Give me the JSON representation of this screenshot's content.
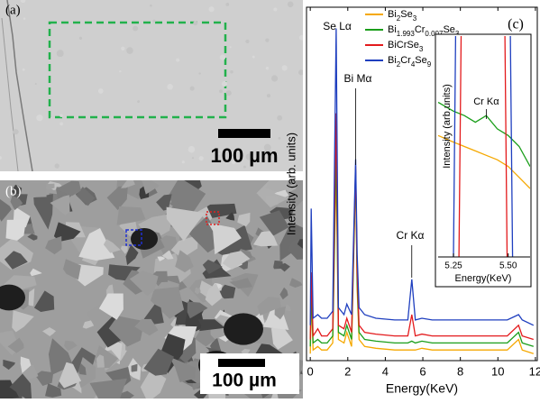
{
  "panels": [
    {
      "label": "(a)",
      "scale_bar": "100 µm"
    },
    {
      "label": "(b)",
      "scale_bar": "100 µm"
    }
  ],
  "chart_data": [
    {
      "type": "line",
      "label": "(c)",
      "x_label": "Energy(KeV)",
      "y_label": "Intensity (arb. units)",
      "x": [
        0,
        0.05,
        0.15,
        0.4,
        0.6,
        0.9,
        1.2,
        1.38,
        1.5,
        1.8,
        1.95,
        2.2,
        2.42,
        2.5,
        2.6,
        2.9,
        3.5,
        4.5,
        5.2,
        5.41,
        5.6,
        5.95,
        6.5,
        7.5,
        8.5,
        9.5,
        10.5,
        11.1,
        11.3,
        11.9
      ],
      "series": [
        {
          "name": "Bi2Se3",
          "color": "#f5a800",
          "values": [
            2,
            18,
            3,
            4,
            3,
            3,
            5,
            55,
            6,
            5,
            8,
            4,
            52,
            20,
            6,
            4,
            3.5,
            3,
            3,
            3,
            3,
            3.5,
            3,
            3,
            3,
            3,
            3,
            6,
            3,
            2
          ]
        },
        {
          "name": "Bi1.993Cr0.007Se3",
          "color": "#1a9e1a",
          "values": [
            4,
            20,
            5,
            6,
            5,
            5,
            7,
            60,
            8,
            7,
            10,
            6,
            54,
            22,
            8,
            6,
            5.5,
            5,
            5,
            5.5,
            5,
            5.5,
            5,
            5,
            5,
            5,
            5,
            8,
            5,
            4
          ]
        },
        {
          "name": "BiCrSe3",
          "color": "#e31a1c",
          "values": [
            6,
            25,
            7,
            9,
            7,
            7,
            9,
            70,
            10,
            9,
            12,
            8,
            55,
            25,
            10,
            8,
            7.5,
            7,
            7,
            13,
            7,
            7.5,
            7,
            7,
            7,
            7,
            7,
            10,
            7,
            6
          ]
        },
        {
          "name": "Bi2Cr4Se9",
          "color": "#1f3fbf",
          "values": [
            10,
            43,
            12,
            13,
            12,
            12,
            14,
            94,
            15,
            13,
            16,
            13,
            57,
            30,
            15,
            13,
            12,
            11.5,
            11.5,
            23,
            11.5,
            12,
            11.5,
            11.5,
            11.5,
            11.5,
            11.5,
            13,
            11.5,
            10
          ]
        }
      ],
      "xlim": [
        -0.2,
        12.1
      ],
      "ylim": [
        0,
        100
      ],
      "xticks": [
        0,
        2,
        4,
        6,
        8,
        10,
        12
      ],
      "annotations": [
        {
          "text": "Se Lα",
          "x": 1.38
        },
        {
          "text": "Bi Mα",
          "x": 2.42
        },
        {
          "text": "Cr Kα",
          "x": 5.41
        }
      ]
    },
    {
      "type": "line",
      "x_label": "Energy(KeV)",
      "y_label": "Intensity (arb.units)",
      "series": [
        {
          "color": "#f5a800",
          "x": [
            5.18,
            5.25,
            5.3,
            5.35,
            5.4,
            5.45,
            5.5,
            5.55,
            5.6
          ],
          "values": [
            55,
            52,
            50,
            48,
            46,
            44,
            41,
            36,
            31
          ]
        },
        {
          "color": "#1a9e1a",
          "x": [
            5.18,
            5.25,
            5.3,
            5.35,
            5.4,
            5.45,
            5.5,
            5.55,
            5.6
          ],
          "values": [
            70,
            66,
            64,
            61,
            64,
            58,
            55,
            50,
            41
          ]
        },
        {
          "color": "#e31a1c",
          "x": [
            5.27,
            5.29,
            5.48,
            5.5
          ],
          "values": [
            -50,
            150,
            150,
            -50
          ]
        },
        {
          "color": "#1f3fbf",
          "x": [
            5.245,
            5.265,
            5.505,
            5.525
          ],
          "values": [
            -50,
            150,
            150,
            -50
          ]
        }
      ],
      "xlim": [
        5.18,
        5.6
      ],
      "ylim": [
        0,
        100
      ],
      "xticks": [
        5.25,
        {
          "value": 5.5,
          "label": "5.50"
        }
      ],
      "annotations": [
        {
          "text": "Cr Kα",
          "x": 5.4
        }
      ]
    }
  ]
}
